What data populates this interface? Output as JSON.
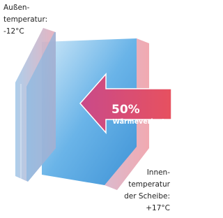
{
  "outside_label": {
    "lines": [
      "Außen-",
      "temperatur:",
      "-12°C"
    ]
  },
  "inside_label": {
    "lines": [
      "Innen-",
      "temperatur",
      "der Scheibe:",
      "+17°C"
    ]
  },
  "arrow": {
    "percent": "50%",
    "label": "Wärmeverlust"
  }
}
